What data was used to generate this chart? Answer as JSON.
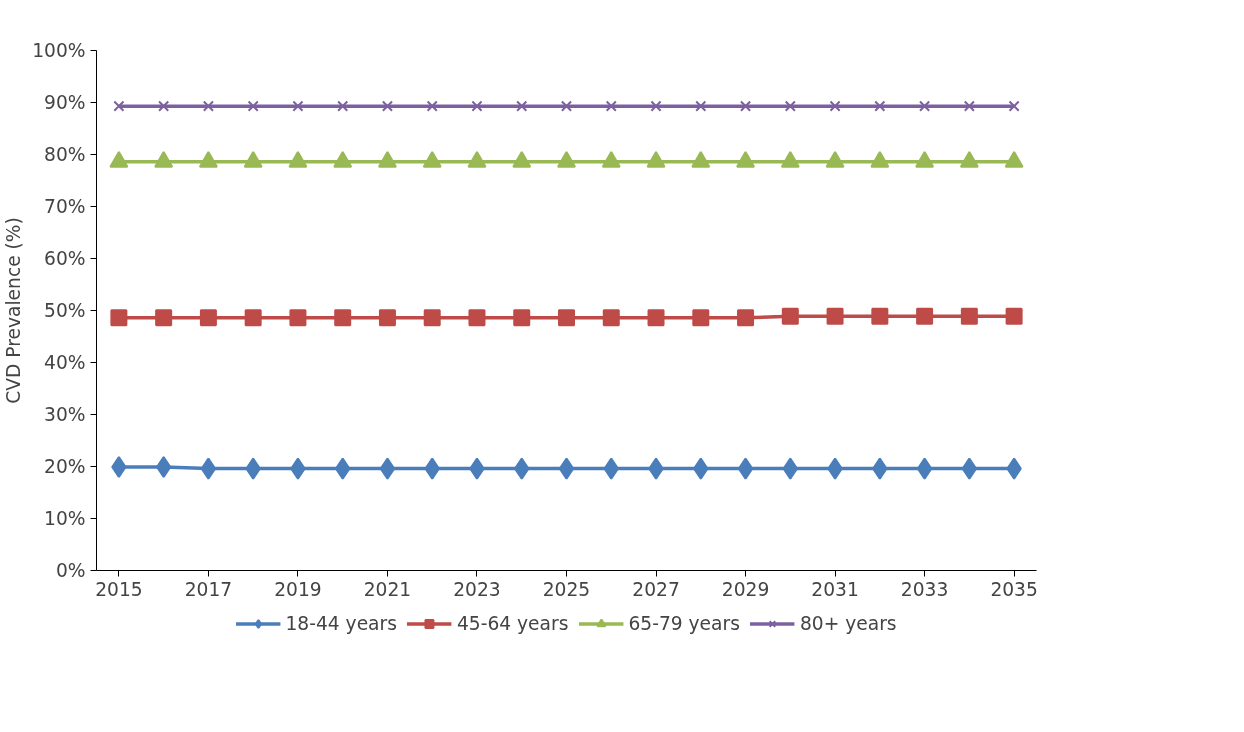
{
  "chart_data": {
    "type": "line",
    "ylabel": "CVD Prevalence (%)",
    "x": [
      2015,
      2016,
      2017,
      2018,
      2019,
      2020,
      2021,
      2022,
      2023,
      2024,
      2025,
      2026,
      2027,
      2028,
      2029,
      2030,
      2031,
      2032,
      2033,
      2034,
      2035
    ],
    "xlim": [
      2014.5,
      2035.5
    ],
    "xticks": [
      2015,
      2017,
      2019,
      2021,
      2023,
      2025,
      2027,
      2029,
      2031,
      2033,
      2035
    ],
    "ylim": [
      0,
      100
    ],
    "yticks": [
      {
        "value": 0,
        "label": "0%"
      },
      {
        "value": 10,
        "label": "10%"
      },
      {
        "value": 20,
        "label": "20%"
      },
      {
        "value": 30,
        "label": "30%"
      },
      {
        "value": 40,
        "label": "40%"
      },
      {
        "value": 50,
        "label": "50%"
      },
      {
        "value": 60,
        "label": "60%"
      },
      {
        "value": 70,
        "label": "70%"
      },
      {
        "value": 80,
        "label": "80%"
      },
      {
        "value": 90,
        "label": "90%"
      },
      {
        "value": 100,
        "label": "100%"
      }
    ],
    "grid": false,
    "legend": "bottom",
    "line_style": "solid",
    "series": [
      {
        "name": "18-44 years",
        "color": "#4a7ebb",
        "marker": "diamond",
        "values": [
          19.9,
          19.9,
          19.6,
          19.6,
          19.6,
          19.6,
          19.6,
          19.6,
          19.6,
          19.6,
          19.6,
          19.6,
          19.6,
          19.6,
          19.6,
          19.6,
          19.6,
          19.6,
          19.6,
          19.6,
          19.6
        ]
      },
      {
        "name": "45-64 years",
        "color": "#be4b48",
        "marker": "square",
        "values": [
          48.6,
          48.6,
          48.6,
          48.6,
          48.6,
          48.6,
          48.6,
          48.6,
          48.6,
          48.6,
          48.6,
          48.6,
          48.6,
          48.6,
          48.6,
          48.9,
          48.9,
          48.9,
          48.9,
          48.9,
          48.9
        ]
      },
      {
        "name": "65-79 years",
        "color": "#98b954",
        "marker": "triangle",
        "values": [
          78.6,
          78.6,
          78.6,
          78.6,
          78.6,
          78.6,
          78.6,
          78.6,
          78.6,
          78.6,
          78.6,
          78.6,
          78.6,
          78.6,
          78.6,
          78.6,
          78.6,
          78.6,
          78.6,
          78.6,
          78.6
        ]
      },
      {
        "name": "80+ years",
        "color": "#7d60a0",
        "marker": "cross",
        "values": [
          89.3,
          89.3,
          89.3,
          89.3,
          89.3,
          89.3,
          89.3,
          89.3,
          89.3,
          89.3,
          89.3,
          89.3,
          89.3,
          89.3,
          89.3,
          89.3,
          89.3,
          89.3,
          89.3,
          89.3,
          89.3
        ]
      }
    ]
  }
}
